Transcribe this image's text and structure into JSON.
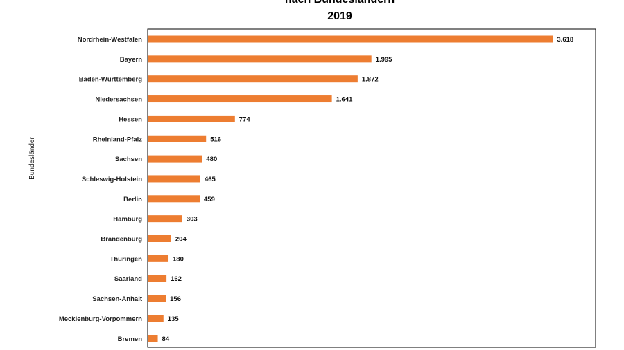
{
  "chart_data": {
    "type": "bar",
    "orientation": "horizontal",
    "title": "nach Bundesländern",
    "subtitle": "2019",
    "ylabel": "Bundesländer",
    "xlabel": "",
    "bar_color": "#ed7d31",
    "xlim": [
      0,
      4000
    ],
    "grid": false,
    "categories": [
      "Nordrhein-Westfalen",
      "Bayern",
      "Baden-Württemberg",
      "Niedersachsen",
      "Hessen",
      "Rheinland-Pfalz",
      "Sachsen",
      "Schleswig-Holstein",
      "Berlin",
      "Hamburg",
      "Brandenburg",
      "Thüringen",
      "Saarland",
      "Sachsen-Anhalt",
      "Mecklenburg-Vorpommern",
      "Bremen"
    ],
    "values": [
      3618,
      1995,
      1872,
      1641,
      774,
      516,
      480,
      465,
      459,
      303,
      204,
      180,
      162,
      156,
      135,
      84
    ],
    "value_labels": [
      "3.618",
      "1.995",
      "1.872",
      "1.641",
      "774",
      "516",
      "480",
      "465",
      "459",
      "303",
      "204",
      "180",
      "162",
      "156",
      "135",
      "84"
    ]
  }
}
